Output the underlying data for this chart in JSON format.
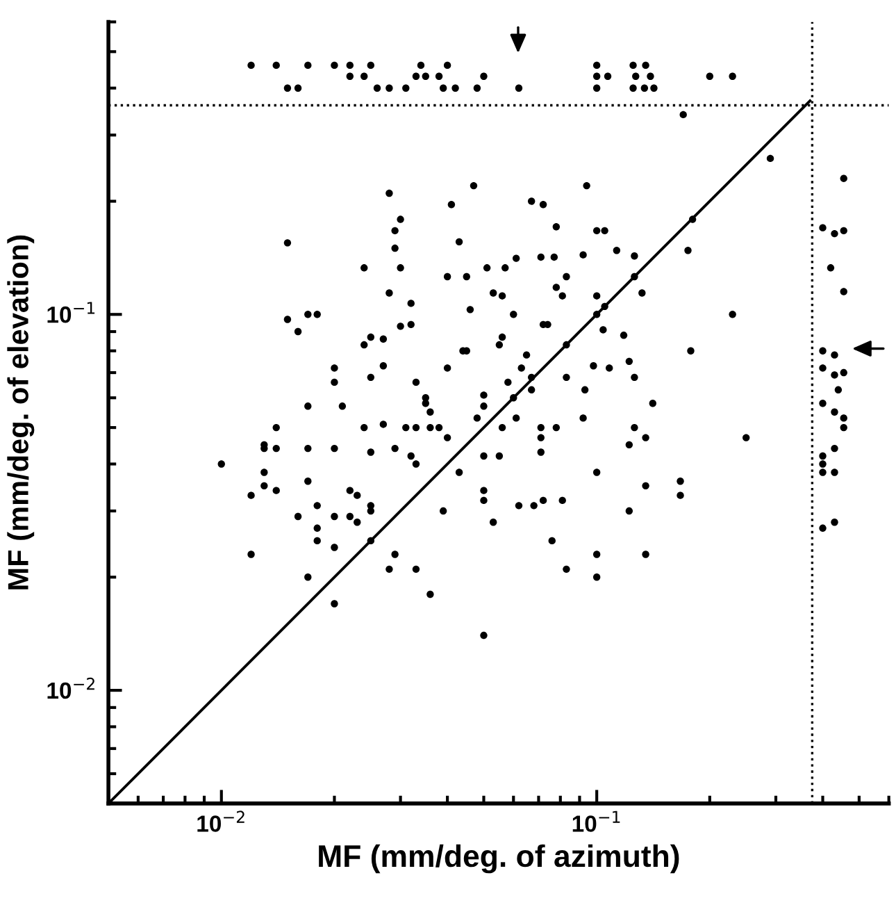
{
  "chart_data": {
    "type": "scatter",
    "xlabel": "MF (mm/deg. of azimuth)",
    "ylabel": "MF (mm/deg. of elevation)",
    "log": "xy",
    "grid": false,
    "marker": "circle",
    "legend": false,
    "xlim": [
      0.005,
      0.6
    ],
    "ylim": [
      0.005,
      0.6
    ],
    "xticks": [
      {
        "value": 0.01,
        "label": "10$^{−2}$"
      },
      {
        "value": 0.1,
        "label": "10$^{−1}$"
      }
    ],
    "yticks": [
      {
        "value": 0.01,
        "label": "10$^{−2}$"
      },
      {
        "value": 0.1,
        "label": "10$^{−1}$"
      }
    ],
    "ref_lines": [
      {
        "axis": "x",
        "value": 0.375,
        "color": "#000000",
        "line_style": "dotted"
      },
      {
        "axis": "y",
        "value": 0.36,
        "color": "#000000",
        "line_style": "dotted"
      }
    ],
    "series": [
      {
        "color": "#000000",
        "x": [
          0.012,
          0.014,
          0.017,
          0.02,
          0.022,
          0.025,
          0.034,
          0.04,
          0.1,
          0.125,
          0.135,
          0.022,
          0.024,
          0.033,
          0.035,
          0.038,
          0.05,
          0.1,
          0.107,
          0.127,
          0.139,
          0.2,
          0.23,
          0.015,
          0.016,
          0.026,
          0.028,
          0.031,
          0.039,
          0.042,
          0.048,
          0.062,
          0.1,
          0.125,
          0.134,
          0.142,
          0.17,
          0.29,
          0.455,
          0.028,
          0.047,
          0.094,
          0.041,
          0.067,
          0.072,
          0.03,
          0.18,
          0.029,
          0.078,
          0.1,
          0.105,
          0.4,
          0.43,
          0.455,
          0.015,
          0.029,
          0.043,
          0.113,
          0.126,
          0.175,
          0.092,
          0.071,
          0.077,
          0.061,
          0.024,
          0.03,
          0.051,
          0.057,
          0.42,
          0.04,
          0.045,
          0.083,
          0.126,
          0.455,
          0.028,
          0.053,
          0.056,
          0.078,
          0.081,
          0.1,
          0.132,
          0.032,
          0.046,
          0.105,
          0.015,
          0.017,
          0.018,
          0.1,
          0.23,
          0.06,
          0.016,
          0.03,
          0.032,
          0.072,
          0.074,
          0.104,
          0.118,
          0.024,
          0.025,
          0.027,
          0.044,
          0.045,
          0.055,
          0.056,
          0.083,
          0.178,
          0.4,
          0.43,
          0.065,
          0.122,
          0.098,
          0.108,
          0.02,
          0.027,
          0.04,
          0.063,
          0.4,
          0.43,
          0.455,
          0.067,
          0.02,
          0.025,
          0.083,
          0.126,
          0.033,
          0.058,
          0.093,
          0.067,
          0.44,
          0.05,
          0.06,
          0.035,
          0.035,
          0.036,
          0.4,
          0.141,
          0.021,
          0.05,
          0.017,
          0.43,
          0.048,
          0.061,
          0.092,
          0.455,
          0.027,
          0.031,
          0.033,
          0.036,
          0.038,
          0.024,
          0.056,
          0.071,
          0.078,
          0.126,
          0.455,
          0.014,
          0.04,
          0.135,
          0.25,
          0.071,
          0.071,
          0.013,
          0.013,
          0.014,
          0.017,
          0.02,
          0.029,
          0.122,
          0.025,
          0.032,
          0.033,
          0.05,
          0.055,
          0.4,
          0.4,
          0.4,
          0.43,
          0.43,
          0.01,
          0.013,
          0.043,
          0.1,
          0.167,
          0.167,
          0.013,
          0.014,
          0.017,
          0.022,
          0.023,
          0.012,
          0.05,
          0.05,
          0.135,
          0.018,
          0.02,
          0.022,
          0.023,
          0.025,
          0.025,
          0.016,
          0.039,
          0.053,
          0.062,
          0.068,
          0.072,
          0.081,
          0.122,
          0.4,
          0.43,
          0.018,
          0.018,
          0.02,
          0.025,
          0.076,
          0.012,
          0.029,
          0.1,
          0.135,
          0.028,
          0.033,
          0.083,
          0.017,
          0.02,
          0.1,
          0.036,
          0.05
        ],
        "values": [
          0.46,
          0.46,
          0.46,
          0.46,
          0.46,
          0.46,
          0.46,
          0.46,
          0.46,
          0.46,
          0.46,
          0.43,
          0.43,
          0.43,
          0.43,
          0.43,
          0.43,
          0.43,
          0.43,
          0.43,
          0.43,
          0.43,
          0.43,
          0.4,
          0.4,
          0.4,
          0.4,
          0.4,
          0.4,
          0.4,
          0.4,
          0.4,
          0.4,
          0.4,
          0.4,
          0.4,
          0.34,
          0.26,
          0.23,
          0.21,
          0.22,
          0.22,
          0.196,
          0.2,
          0.196,
          0.179,
          0.179,
          0.167,
          0.171,
          0.167,
          0.167,
          0.17,
          0.164,
          0.167,
          0.155,
          0.15,
          0.156,
          0.148,
          0.143,
          0.148,
          0.144,
          0.142,
          0.142,
          0.141,
          0.133,
          0.133,
          0.133,
          0.133,
          0.133,
          0.126,
          0.126,
          0.126,
          0.126,
          0.115,
          0.114,
          0.114,
          0.112,
          0.118,
          0.112,
          0.112,
          0.114,
          0.107,
          0.103,
          0.105,
          0.097,
          0.1,
          0.1,
          0.1,
          0.1,
          0.1,
          0.09,
          0.093,
          0.094,
          0.094,
          0.094,
          0.091,
          0.088,
          0.083,
          0.087,
          0.086,
          0.08,
          0.08,
          0.083,
          0.087,
          0.083,
          0.08,
          0.08,
          0.078,
          0.078,
          0.075,
          0.073,
          0.072,
          0.072,
          0.073,
          0.072,
          0.072,
          0.072,
          0.069,
          0.07,
          0.068,
          0.066,
          0.068,
          0.068,
          0.068,
          0.066,
          0.066,
          0.063,
          0.063,
          0.063,
          0.061,
          0.06,
          0.06,
          0.058,
          0.055,
          0.058,
          0.058,
          0.057,
          0.057,
          0.057,
          0.055,
          0.053,
          0.053,
          0.053,
          0.053,
          0.051,
          0.05,
          0.05,
          0.05,
          0.05,
          0.05,
          0.05,
          0.05,
          0.05,
          0.05,
          0.05,
          0.05,
          0.047,
          0.047,
          0.047,
          0.047,
          0.043,
          0.045,
          0.044,
          0.044,
          0.044,
          0.044,
          0.044,
          0.045,
          0.043,
          0.042,
          0.04,
          0.042,
          0.042,
          0.042,
          0.04,
          0.038,
          0.044,
          0.038,
          0.04,
          0.038,
          0.038,
          0.038,
          0.036,
          0.033,
          0.035,
          0.034,
          0.036,
          0.034,
          0.033,
          0.033,
          0.034,
          0.032,
          0.035,
          0.031,
          0.029,
          0.029,
          0.028,
          0.031,
          0.03,
          0.029,
          0.03,
          0.028,
          0.031,
          0.031,
          0.032,
          0.032,
          0.03,
          0.027,
          0.028,
          0.027,
          0.025,
          0.024,
          0.025,
          0.025,
          0.023,
          0.023,
          0.023,
          0.023,
          0.021,
          0.021,
          0.021,
          0.02,
          0.017,
          0.02,
          0.018,
          0.014
        ]
      },
      {
        "type": "line",
        "color": "#000000",
        "x": [
          0.005,
          0.37
        ],
        "values": [
          0.005,
          0.37
        ],
        "line_style": "solid",
        "marker": "none"
      }
    ]
  }
}
